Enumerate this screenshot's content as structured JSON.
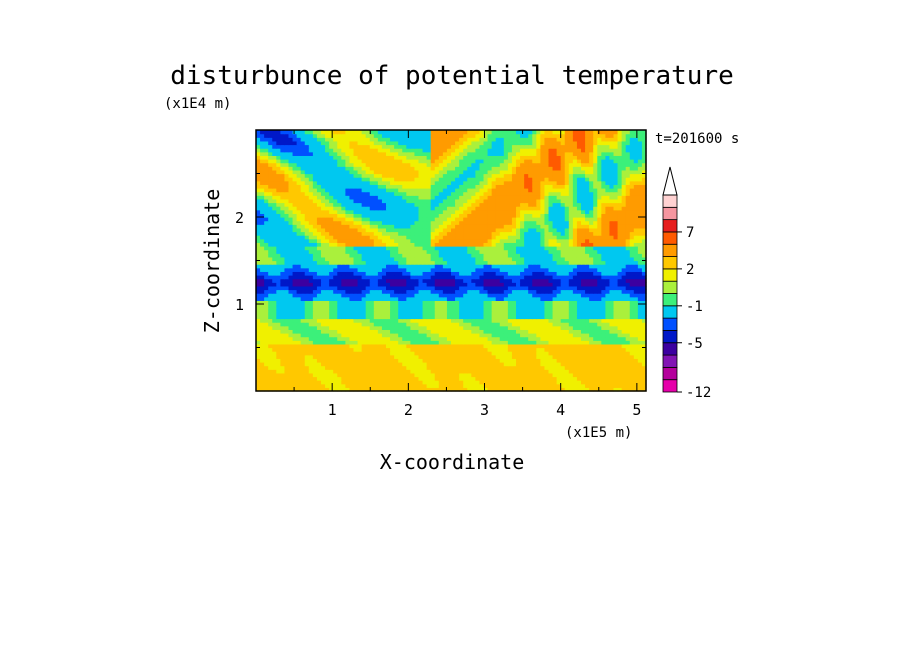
{
  "chart_data": {
    "type": "heatmap",
    "title": "disturbunce of potential temperature",
    "xlabel": "X-coordinate",
    "ylabel": "Z-coordinate",
    "x_scale_label": "(x1E5 m)",
    "y_scale_label": "(x1E4 m)",
    "time_label": "t=201600 s",
    "xlim": [
      0,
      5.12
    ],
    "ylim": [
      0,
      3.0
    ],
    "x_ticks": [
      1,
      2,
      3,
      4,
      5
    ],
    "y_ticks": [
      1,
      2
    ],
    "colorbar": {
      "levels": [
        -12,
        -11,
        -9,
        -7,
        -5,
        -4,
        -3,
        -1,
        0,
        1,
        2,
        3,
        5,
        7,
        8,
        9,
        10
      ],
      "tick_values": [
        -12,
        -5,
        -1,
        2,
        7
      ],
      "tick_labels": [
        "-12",
        "-5",
        "-1",
        "2",
        "7"
      ],
      "colors": [
        "#e600aa",
        "#b4009c",
        "#8214b4",
        "#3c00a0",
        "#0018c8",
        "#0050ff",
        "#00c8f0",
        "#3cf07a",
        "#aaf03c",
        "#f0f000",
        "#ffc800",
        "#ff9b00",
        "#ff5a00",
        "#e61e1e",
        "#f596a0",
        "#ffd2d2"
      ],
      "overflow_color": "#ffffff"
    }
  }
}
